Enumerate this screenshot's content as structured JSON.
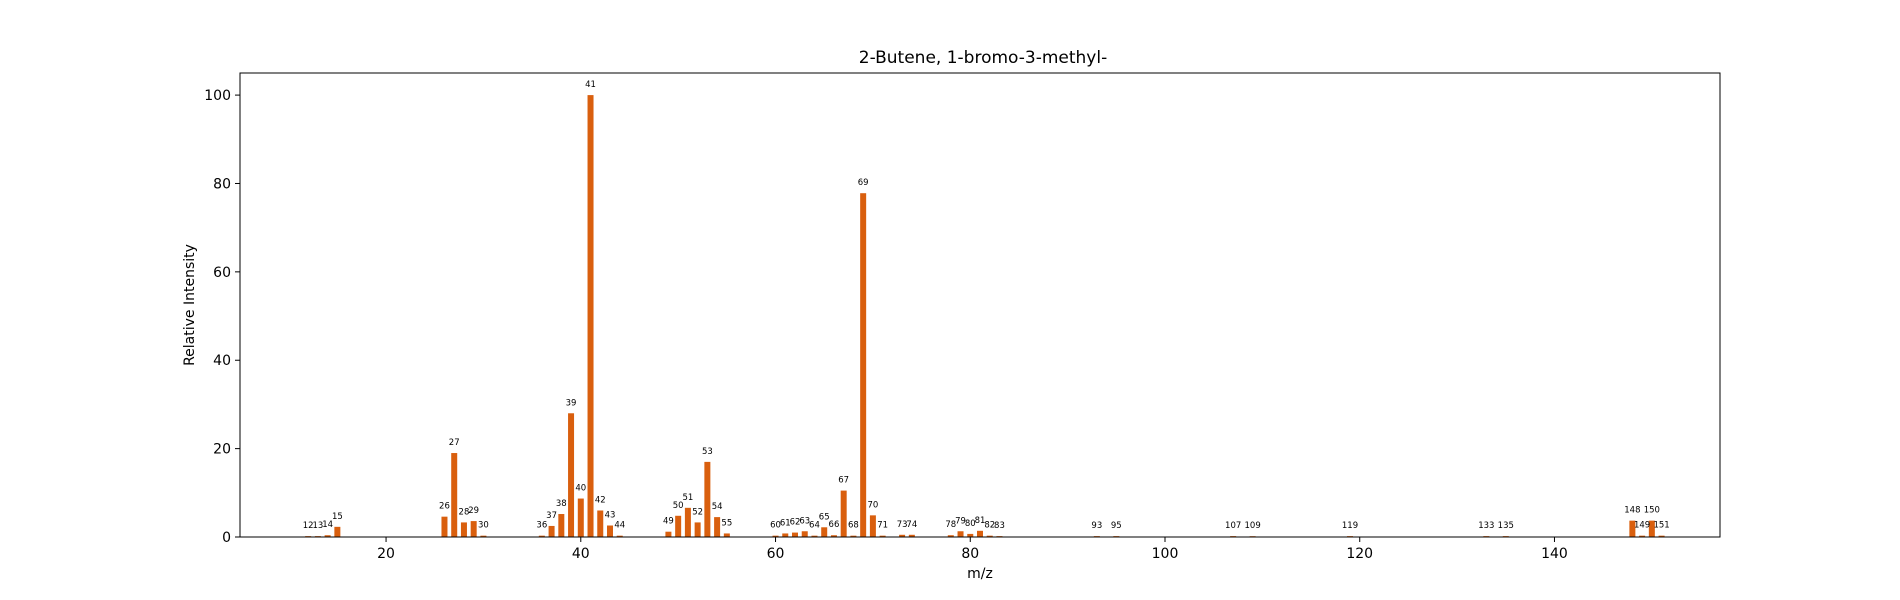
{
  "chart_data": {
    "type": "bar",
    "title": "2-Butene, 1-bromo-3-methyl-",
    "xlabel": "m/z",
    "ylabel": "Relative Intensity",
    "xlim": [
      5,
      157
    ],
    "ylim": [
      0,
      105
    ],
    "xticks": [
      20,
      40,
      60,
      80,
      100,
      120,
      140
    ],
    "yticks": [
      0,
      20,
      40,
      60,
      80,
      100
    ],
    "grid": false,
    "bar_color": "#d95f0e",
    "points": [
      {
        "x": 12,
        "y": 0.2
      },
      {
        "x": 13,
        "y": 0.2
      },
      {
        "x": 14,
        "y": 0.4
      },
      {
        "x": 15,
        "y": 2.3
      },
      {
        "x": 26,
        "y": 4.6
      },
      {
        "x": 27,
        "y": 19
      },
      {
        "x": 28,
        "y": 3.3
      },
      {
        "x": 29,
        "y": 3.6
      },
      {
        "x": 30,
        "y": 0.3
      },
      {
        "x": 36,
        "y": 0.3
      },
      {
        "x": 37,
        "y": 2.5
      },
      {
        "x": 38,
        "y": 5.2
      },
      {
        "x": 39,
        "y": 28
      },
      {
        "x": 40,
        "y": 8.7
      },
      {
        "x": 41,
        "y": 100
      },
      {
        "x": 42,
        "y": 6
      },
      {
        "x": 43,
        "y": 2.6
      },
      {
        "x": 44,
        "y": 0.3
      },
      {
        "x": 49,
        "y": 1.2
      },
      {
        "x": 50,
        "y": 4.8
      },
      {
        "x": 51,
        "y": 6.6
      },
      {
        "x": 52,
        "y": 3.3
      },
      {
        "x": 53,
        "y": 17
      },
      {
        "x": 54,
        "y": 4.5
      },
      {
        "x": 55,
        "y": 0.8
      },
      {
        "x": 60,
        "y": 0.3
      },
      {
        "x": 61,
        "y": 0.8
      },
      {
        "x": 62,
        "y": 1
      },
      {
        "x": 63,
        "y": 1.3
      },
      {
        "x": 64,
        "y": 0.3
      },
      {
        "x": 65,
        "y": 2.2
      },
      {
        "x": 66,
        "y": 0.4
      },
      {
        "x": 67,
        "y": 10.5
      },
      {
        "x": 68,
        "y": 0.3
      },
      {
        "x": 69,
        "y": 77.8
      },
      {
        "x": 70,
        "y": 4.9
      },
      {
        "x": 71,
        "y": 0.3
      },
      {
        "x": 73,
        "y": 0.5
      },
      {
        "x": 74,
        "y": 0.5
      },
      {
        "x": 78,
        "y": 0.4
      },
      {
        "x": 79,
        "y": 1.3
      },
      {
        "x": 80,
        "y": 0.7
      },
      {
        "x": 81,
        "y": 1.4
      },
      {
        "x": 82,
        "y": 0.3
      },
      {
        "x": 83,
        "y": 0.2
      },
      {
        "x": 93,
        "y": 0.2
      },
      {
        "x": 95,
        "y": 0.2
      },
      {
        "x": 107,
        "y": 0.2
      },
      {
        "x": 109,
        "y": 0.1
      },
      {
        "x": 119,
        "y": 0.2
      },
      {
        "x": 133,
        "y": 0.2
      },
      {
        "x": 135,
        "y": 0.2
      },
      {
        "x": 148,
        "y": 3.7
      },
      {
        "x": 149,
        "y": 0.3
      },
      {
        "x": 150,
        "y": 3.7
      },
      {
        "x": 151,
        "y": 0.3
      }
    ]
  }
}
